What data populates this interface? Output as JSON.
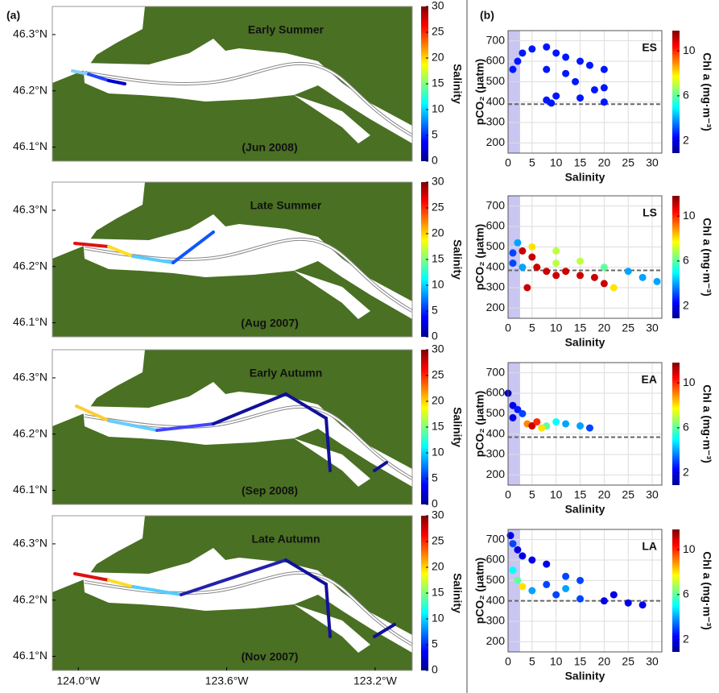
{
  "labels": {
    "a": "(a)",
    "b": "(b)"
  },
  "chart_data": [
    {
      "type": "map",
      "title": "Early Summer",
      "subtitle": "(Jun 2008)",
      "colorbar_label": "Salinity",
      "clim": [
        0,
        30
      ],
      "cticks": [
        0,
        5,
        10,
        15,
        20,
        25,
        30
      ],
      "ylim": [
        46.075,
        46.35
      ],
      "yticks": [
        {
          "value": 46.1,
          "label": "46.1°N"
        },
        {
          "value": 46.2,
          "label": "46.2°N"
        },
        {
          "value": 46.3,
          "label": "46.3°N"
        }
      ]
    },
    {
      "type": "map",
      "title": "Late Summer",
      "subtitle": "(Aug 2007)",
      "colorbar_label": "Salinity",
      "clim": [
        0,
        30
      ],
      "cticks": [
        0,
        5,
        10,
        15,
        20,
        25,
        30
      ],
      "ylim": [
        46.075,
        46.35
      ],
      "yticks": [
        {
          "value": 46.1,
          "label": "46.1°N"
        },
        {
          "value": 46.2,
          "label": "46.2°N"
        },
        {
          "value": 46.3,
          "label": "46.3°N"
        }
      ]
    },
    {
      "type": "map",
      "title": "Early Autumn",
      "subtitle": "(Sep 2008)",
      "colorbar_label": "Salinity",
      "clim": [
        0,
        30
      ],
      "cticks": [
        0,
        5,
        10,
        15,
        20,
        25,
        30
      ],
      "ylim": [
        46.075,
        46.35
      ],
      "yticks": [
        {
          "value": 46.1,
          "label": "46.1°N"
        },
        {
          "value": 46.2,
          "label": "46.2°N"
        },
        {
          "value": 46.3,
          "label": "46.3°N"
        }
      ]
    },
    {
      "type": "map",
      "title": "Late Autumn",
      "subtitle": "(Nov 2007)",
      "colorbar_label": "Salinity",
      "clim": [
        0,
        30
      ],
      "cticks": [
        0,
        5,
        10,
        15,
        20,
        25,
        30
      ],
      "ylim": [
        46.075,
        46.35
      ],
      "yticks": [
        {
          "value": 46.1,
          "label": "46.1°N"
        },
        {
          "value": 46.2,
          "label": "46.2°N"
        },
        {
          "value": 46.3,
          "label": "46.3°N"
        }
      ],
      "xlim": [
        -124.07,
        -123.1
      ],
      "xticks": [
        {
          "value": -124.0,
          "label": "124.0°W"
        },
        {
          "value": -123.6,
          "label": "123.6°W"
        },
        {
          "value": -123.2,
          "label": "123.2°W"
        }
      ]
    },
    {
      "type": "scatter",
      "title": "ES",
      "xlabel": "Salinity",
      "ylabel": "pCO₂ (μatm)",
      "colorbar_label": "Chl a (mg·m⁻³)",
      "xlim": [
        0,
        32
      ],
      "ylim": [
        150,
        750
      ],
      "xticks": [
        0,
        5,
        10,
        15,
        20,
        25,
        30
      ],
      "yticks": [
        200,
        300,
        400,
        500,
        600,
        700
      ],
      "clim": [
        0.9,
        11.8
      ],
      "cticks": [
        2,
        6,
        10
      ],
      "reference_line": 390,
      "shade": [
        0,
        2.5
      ],
      "shade_color": "#c9c6f2",
      "grid": true,
      "x": [
        1,
        2,
        3,
        5,
        8,
        10,
        12,
        15,
        17,
        20,
        12,
        8,
        14,
        20,
        18,
        10,
        8,
        9,
        15,
        20
      ],
      "y": [
        560,
        600,
        640,
        660,
        670,
        640,
        620,
        600,
        580,
        560,
        540,
        560,
        500,
        470,
        460,
        430,
        410,
        395,
        420,
        400
      ],
      "chl": [
        2.5,
        2.5,
        2.5,
        2.5,
        2.5,
        2.5,
        2.5,
        2.5,
        2.5,
        2.5,
        2.5,
        2.5,
        2.5,
        2.5,
        2.5,
        2.5,
        2.5,
        2.5,
        2.5,
        2.5
      ]
    },
    {
      "type": "scatter",
      "title": "LS",
      "xlabel": "Salinity",
      "ylabel": "pCO₂ (μatm)",
      "colorbar_label": "Chl a (mg·m⁻³)",
      "xlim": [
        0,
        32
      ],
      "ylim": [
        150,
        750
      ],
      "xticks": [
        0,
        5,
        10,
        15,
        20,
        25,
        30
      ],
      "yticks": [
        200,
        300,
        400,
        500,
        600,
        700
      ],
      "clim": [
        0.9,
        11.8
      ],
      "cticks": [
        2,
        6,
        10
      ],
      "reference_line": 385,
      "shade": [
        0,
        2.5
      ],
      "shade_color": "#c9c6f2",
      "grid": true,
      "x": [
        1,
        2,
        10,
        15,
        20,
        25,
        28,
        31,
        22,
        5,
        10,
        3,
        1,
        3,
        5,
        6,
        8,
        10,
        12,
        15,
        18,
        20,
        4
      ],
      "y": [
        470,
        520,
        420,
        430,
        400,
        380,
        350,
        330,
        300,
        500,
        480,
        400,
        420,
        480,
        450,
        400,
        380,
        360,
        380,
        360,
        350,
        320,
        300
      ],
      "chl": [
        3,
        4,
        7,
        7,
        6,
        4,
        4,
        4,
        8,
        8,
        7,
        4,
        3,
        11,
        11,
        11,
        11,
        11,
        11,
        11,
        11,
        11,
        11
      ]
    },
    {
      "type": "scatter",
      "title": "EA",
      "xlabel": "Salinity",
      "ylabel": "pCO₂ (μatm)",
      "colorbar_label": "Chl a (mg·m⁻³)",
      "xlim": [
        0,
        32
      ],
      "ylim": [
        150,
        750
      ],
      "xticks": [
        0,
        5,
        10,
        15,
        20,
        25,
        30
      ],
      "yticks": [
        200,
        300,
        400,
        500,
        600,
        700
      ],
      "clim": [
        0.9,
        11.8
      ],
      "cticks": [
        2,
        6,
        10
      ],
      "reference_line": 385,
      "shade": [
        0,
        2.5
      ],
      "shade_color": "#c9c6f2",
      "grid": true,
      "x": [
        0,
        1,
        2,
        3,
        10,
        12,
        15,
        17,
        8,
        1,
        4,
        5,
        6,
        7
      ],
      "y": [
        600,
        540,
        520,
        500,
        460,
        450,
        440,
        430,
        440,
        480,
        450,
        440,
        460,
        430
      ],
      "chl": [
        1.5,
        2,
        2.5,
        3,
        5,
        4,
        4,
        3,
        6,
        2,
        9,
        11,
        10,
        8
      ]
    },
    {
      "type": "scatter",
      "title": "LA",
      "xlabel": "Salinity",
      "ylabel": "pCO₂ (μatm)",
      "colorbar_label": "Chl a (mg·m⁻³)",
      "xlim": [
        0,
        32
      ],
      "ylim": [
        150,
        750
      ],
      "xticks": [
        0,
        5,
        10,
        15,
        20,
        25,
        30
      ],
      "yticks": [
        200,
        300,
        400,
        500,
        600,
        700
      ],
      "clim": [
        0.9,
        11.8
      ],
      "cticks": [
        2,
        6,
        10
      ],
      "reference_line": 400,
      "shade": [
        0,
        2.5
      ],
      "shade_color": "#c9c6f2",
      "grid": true,
      "x": [
        0.5,
        1,
        2,
        3,
        5,
        8,
        12,
        15,
        1,
        2,
        5,
        10,
        15,
        20,
        25,
        28,
        3,
        8,
        12,
        22
      ],
      "y": [
        720,
        680,
        650,
        620,
        600,
        580,
        520,
        500,
        550,
        500,
        450,
        430,
        410,
        400,
        390,
        380,
        470,
        480,
        460,
        430
      ],
      "chl": [
        2,
        3,
        2,
        2,
        2,
        2,
        3,
        3,
        5,
        6,
        4,
        3,
        3,
        2,
        2,
        2,
        8,
        3,
        4,
        2
      ]
    }
  ]
}
